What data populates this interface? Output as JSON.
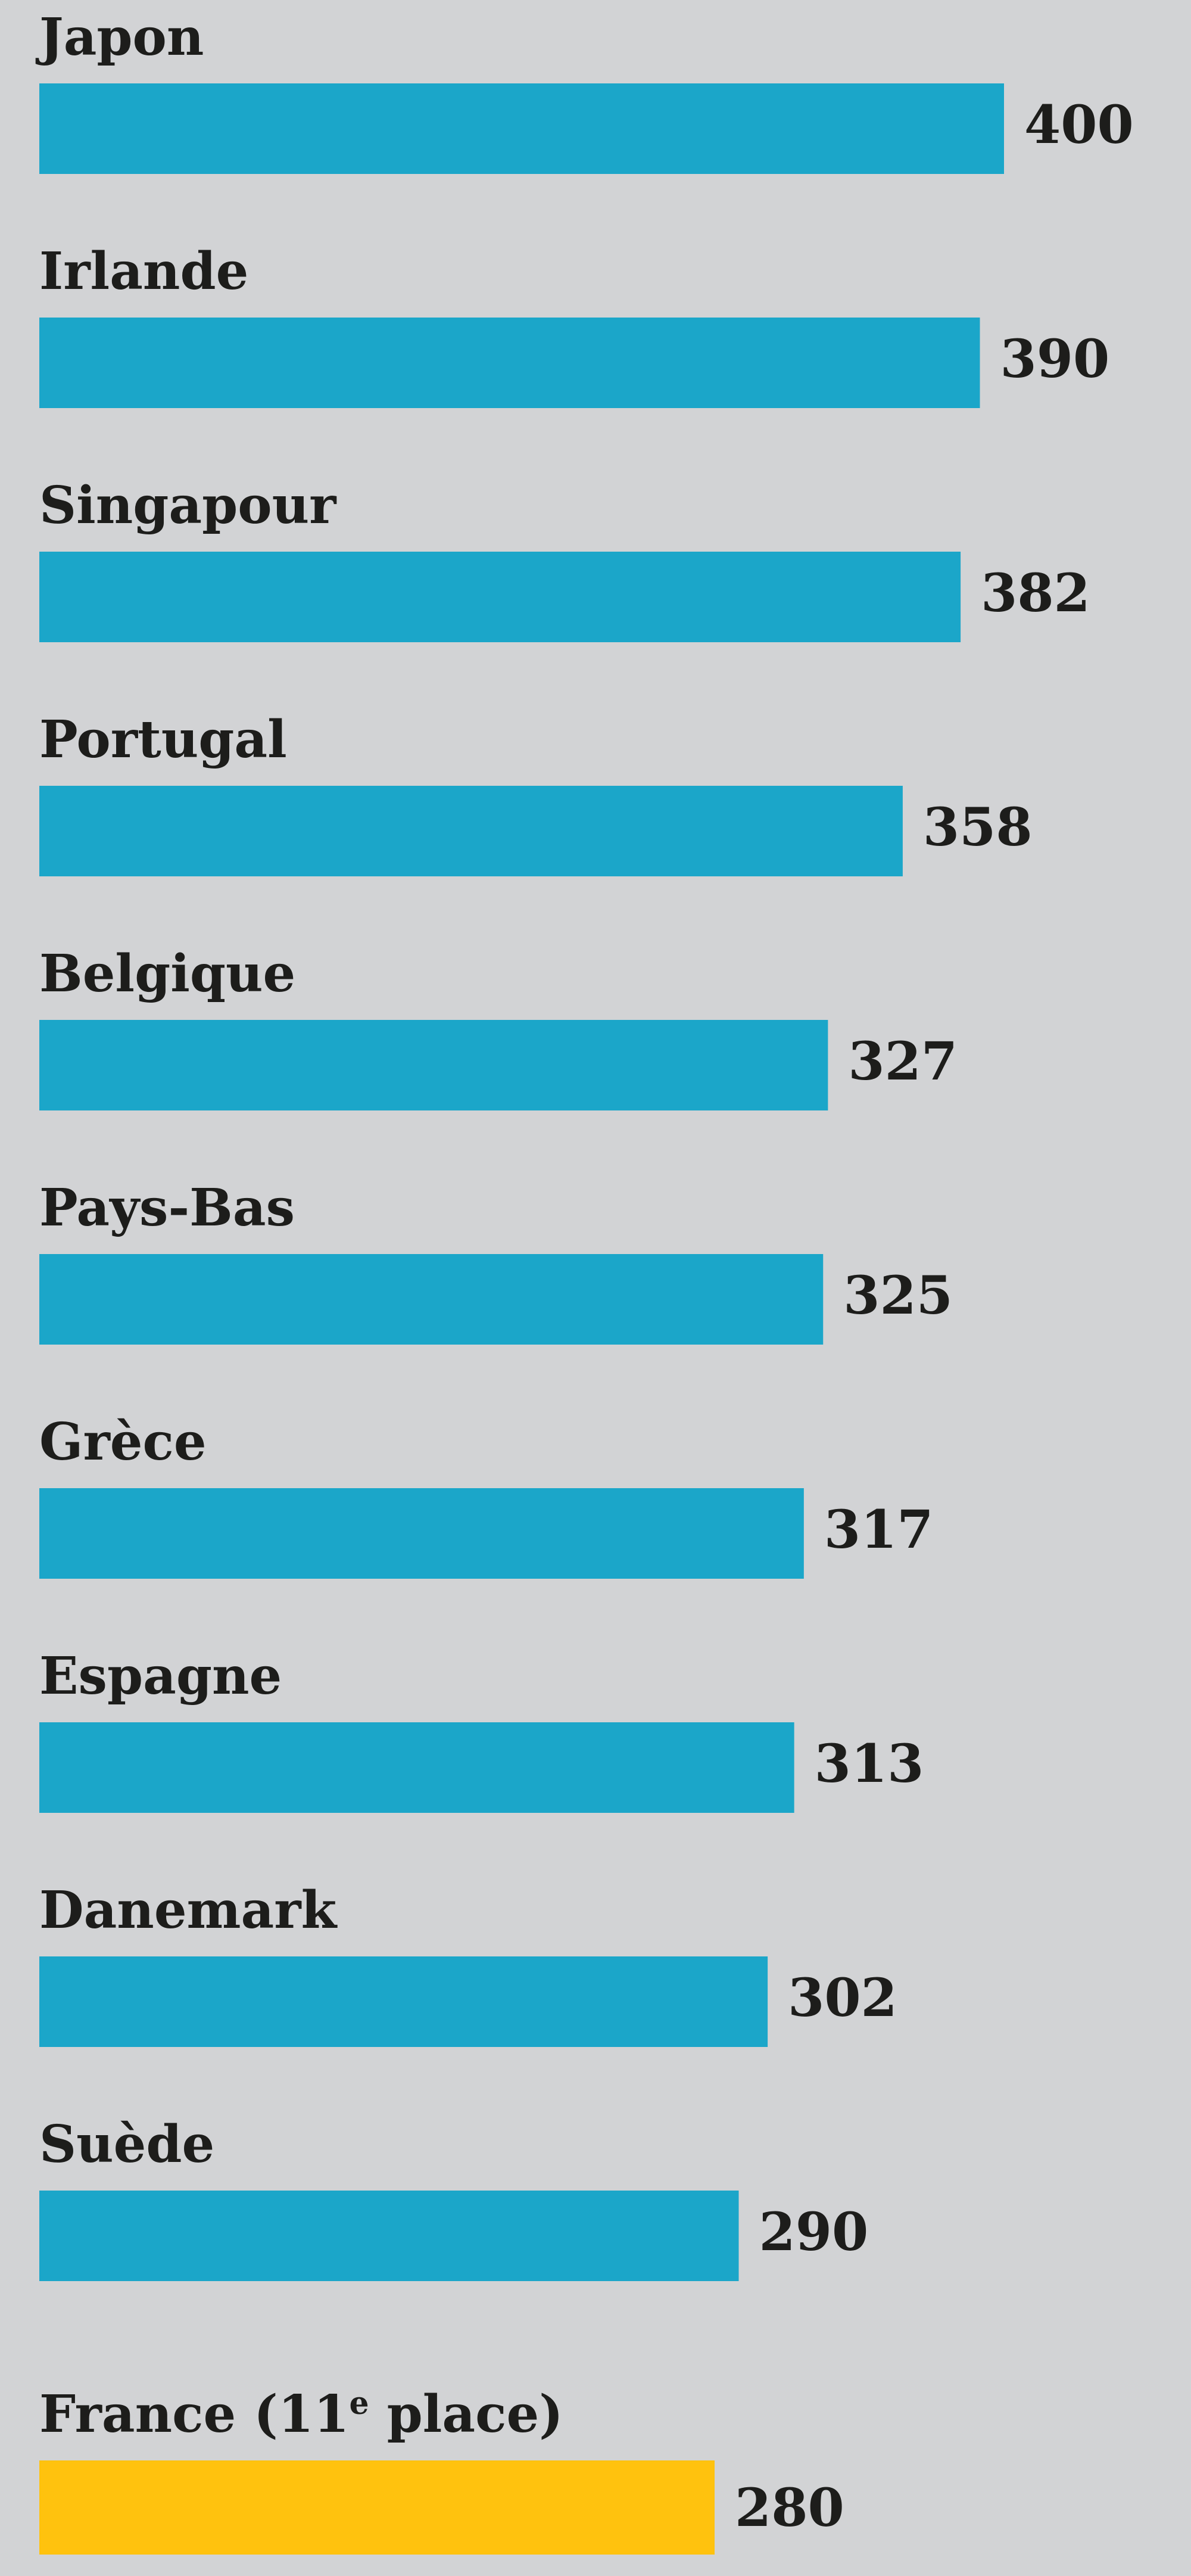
{
  "colors": {
    "background": "#d2d3d5",
    "bar": "#1ba6c9",
    "highlight_bar": "#ffc20e",
    "text": "#1d1d1b"
  },
  "chart_data": {
    "type": "bar",
    "orientation": "horizontal",
    "categories": [
      "Japon",
      "Irlande",
      "Singapour",
      "Portugal",
      "Belgique",
      "Pays-Bas",
      "Grèce",
      "Espagne",
      "Danemark",
      "Suède"
    ],
    "values": [
      400,
      390,
      382,
      358,
      327,
      325,
      317,
      313,
      302,
      290
    ],
    "highlight": {
      "name": "France",
      "place_number": "(11",
      "place_suffix": "e",
      "place_word": "place)",
      "value": 280
    },
    "title": "",
    "xlabel": "",
    "ylabel": "",
    "xlim": [
      0,
      400
    ],
    "grid": false,
    "legend": "none"
  }
}
